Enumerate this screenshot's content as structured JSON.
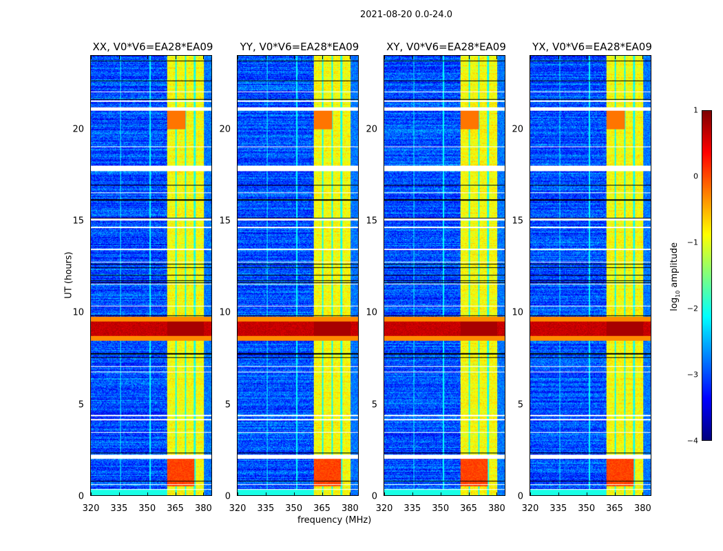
{
  "chart_data": {
    "type": "heatmap",
    "title": "2021-08-20 0.0-24.0",
    "panels": [
      {
        "title": "XX, V0*V6=EA28*EA09",
        "show_xlabel": false
      },
      {
        "title": "YY, V0*V6=EA28*EA09",
        "show_xlabel": true
      },
      {
        "title": "XY, V0*V6=EA28*EA09",
        "show_xlabel": false
      },
      {
        "title": "YX, V0*V6=EA28*EA09",
        "show_xlabel": false
      }
    ],
    "xlabel": "frequency (MHz)",
    "ylabel": "UT (hours)",
    "xlim": [
      320,
      385
    ],
    "ylim": [
      0,
      24
    ],
    "xticks": [
      "320",
      "335",
      "350",
      "365",
      "380"
    ],
    "xtick_values": [
      320,
      335,
      350,
      365,
      380
    ],
    "yticks": [
      "0",
      "5",
      "10",
      "15",
      "20"
    ],
    "ytick_values": [
      0,
      5,
      10,
      15,
      20
    ],
    "colorbar": {
      "label": "log10 amplitude",
      "label_main": "log",
      "label_sub": "10",
      "label_rest": " amplitude",
      "range": [
        -4,
        1
      ],
      "ticks": [
        "1",
        "0",
        "−1",
        "−2",
        "−3",
        "−4"
      ],
      "tick_values": [
        1,
        0,
        -1,
        -2,
        -3,
        -4
      ],
      "colormap": "jet"
    },
    "features": {
      "bright_band_mhz": [
        361,
        381
      ],
      "strong_rfi_hours": [
        8.7,
        9.5
      ]
    }
  }
}
